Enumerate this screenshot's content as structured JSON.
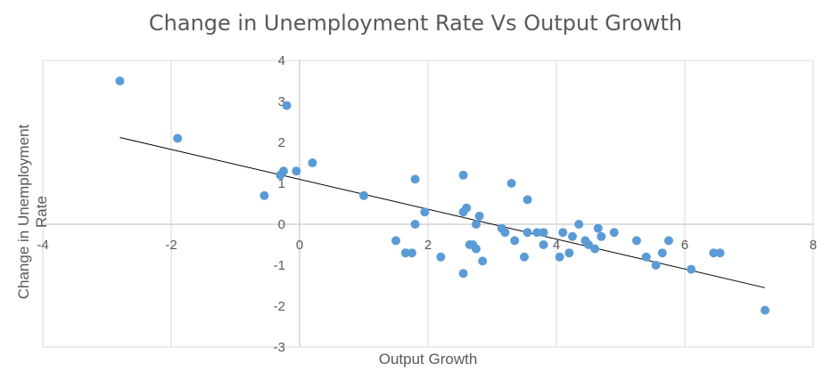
{
  "chart_data": {
    "type": "scatter",
    "title": "Change in Unemployment Rate Vs Output Growth",
    "xlabel": "Output Growth",
    "ylabel": "Change in Unemployment Rate",
    "xlim": [
      -4,
      8
    ],
    "ylim": [
      -3,
      4
    ],
    "xticks": [
      "-4",
      "-2",
      "0",
      "2",
      "4",
      "6",
      "8"
    ],
    "yticks": [
      "-3",
      "-2",
      "-1",
      "0",
      "1",
      "2",
      "3",
      "4"
    ],
    "grid": "vertical",
    "point_color": "#5b9bd5",
    "trendline": {
      "x1": -2.8,
      "y1": 2.12,
      "x2": 7.25,
      "y2": -1.55,
      "color": "#000000"
    },
    "points": [
      {
        "x": -2.8,
        "y": 3.5
      },
      {
        "x": -1.9,
        "y": 2.1
      },
      {
        "x": -0.2,
        "y": 2.9
      },
      {
        "x": 0.2,
        "y": 1.5
      },
      {
        "x": -0.25,
        "y": 1.3
      },
      {
        "x": -0.05,
        "y": 1.3
      },
      {
        "x": -0.3,
        "y": 1.2
      },
      {
        "x": -0.55,
        "y": 0.7
      },
      {
        "x": 1.0,
        "y": 0.7
      },
      {
        "x": 1.8,
        "y": 1.1
      },
      {
        "x": 1.95,
        "y": 0.3
      },
      {
        "x": 1.8,
        "y": 0.0
      },
      {
        "x": 1.5,
        "y": -0.4
      },
      {
        "x": 1.65,
        "y": -0.7
      },
      {
        "x": 1.75,
        "y": -0.7
      },
      {
        "x": 2.2,
        "y": -0.8
      },
      {
        "x": 2.55,
        "y": 1.2
      },
      {
        "x": 2.6,
        "y": 0.4
      },
      {
        "x": 2.55,
        "y": 0.3
      },
      {
        "x": 2.8,
        "y": 0.2
      },
      {
        "x": 2.75,
        "y": 0.0
      },
      {
        "x": 2.65,
        "y": -0.5
      },
      {
        "x": 2.7,
        "y": -0.5
      },
      {
        "x": 2.75,
        "y": -0.6
      },
      {
        "x": 2.85,
        "y": -0.9
      },
      {
        "x": 2.55,
        "y": -1.2
      },
      {
        "x": 3.3,
        "y": 1.0
      },
      {
        "x": 3.55,
        "y": 0.6
      },
      {
        "x": 3.15,
        "y": -0.1
      },
      {
        "x": 3.2,
        "y": -0.2
      },
      {
        "x": 3.35,
        "y": -0.4
      },
      {
        "x": 3.5,
        "y": -0.8
      },
      {
        "x": 3.55,
        "y": -0.2
      },
      {
        "x": 3.7,
        "y": -0.2
      },
      {
        "x": 3.8,
        "y": -0.5
      },
      {
        "x": 3.8,
        "y": -0.2
      },
      {
        "x": 4.05,
        "y": -0.8
      },
      {
        "x": 4.1,
        "y": -0.2
      },
      {
        "x": 4.2,
        "y": -0.7
      },
      {
        "x": 4.25,
        "y": -0.3
      },
      {
        "x": 4.35,
        "y": 0.0
      },
      {
        "x": 4.45,
        "y": -0.4
      },
      {
        "x": 4.5,
        "y": -0.5
      },
      {
        "x": 4.6,
        "y": -0.6
      },
      {
        "x": 4.65,
        "y": -0.1
      },
      {
        "x": 4.7,
        "y": -0.3
      },
      {
        "x": 4.9,
        "y": -0.2
      },
      {
        "x": 5.25,
        "y": -0.4
      },
      {
        "x": 5.4,
        "y": -0.8
      },
      {
        "x": 5.55,
        "y": -1.0
      },
      {
        "x": 5.65,
        "y": -0.7
      },
      {
        "x": 5.75,
        "y": -0.4
      },
      {
        "x": 6.1,
        "y": -1.1
      },
      {
        "x": 6.45,
        "y": -0.7
      },
      {
        "x": 6.55,
        "y": -0.7
      },
      {
        "x": 7.25,
        "y": -2.1
      }
    ]
  }
}
